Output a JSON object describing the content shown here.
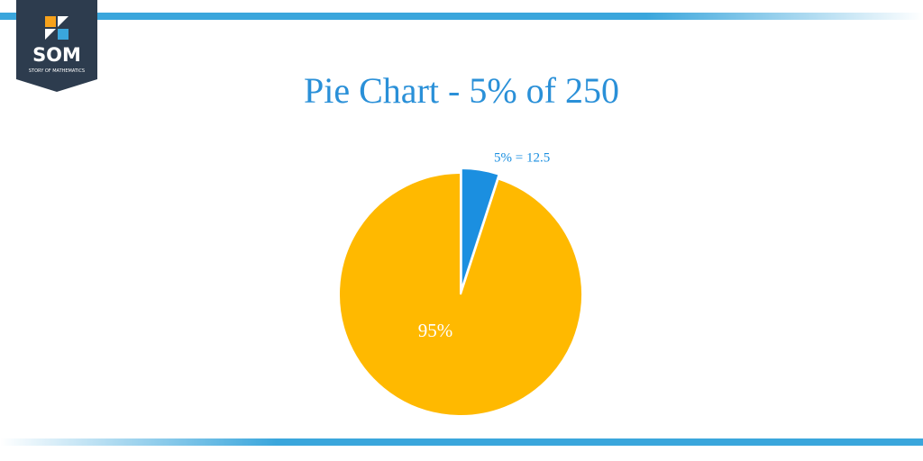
{
  "logo": {
    "text": "SOM",
    "subtitle": "STORY OF MATHEMATICS"
  },
  "chart_data": {
    "type": "pie",
    "title": "Pie Chart -  5% of 250",
    "categories": [
      null,
      null
    ],
    "values": [
      5,
      95
    ],
    "value_labels": [
      "5% = 12.5",
      "95%"
    ],
    "colors": [
      "#1b8fe0",
      "#ffb900"
    ]
  }
}
